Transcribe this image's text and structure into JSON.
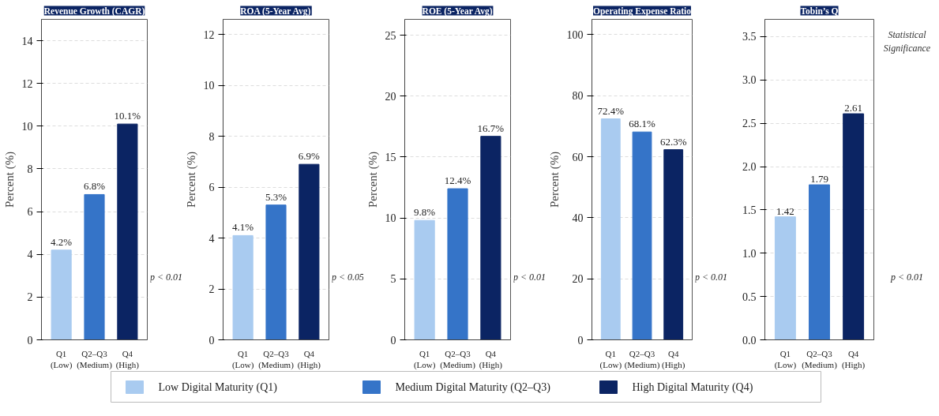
{
  "chart_data": [
    {
      "type": "bar",
      "title": "Revenue Growth (CAGR)",
      "ylabel": "Percent (%)",
      "categories": [
        "Q1\n(Low)",
        "Q2–Q3\n(Medium)",
        "Q4\n(High)"
      ],
      "series": [
        {
          "name": "Low Digital Maturity (Q1)",
          "color": "#a9cbf0",
          "values": [
            4.2,
            null,
            null
          ],
          "value_labels": [
            "4.2%",
            null,
            null
          ]
        },
        {
          "name": "Medium Digital Maturity (Q2–Q3)",
          "color": "#3574c8",
          "values": [
            null,
            6.8,
            null
          ],
          "value_labels": [
            null,
            "6.8%",
            null
          ]
        },
        {
          "name": "High Digital Maturity (Q4)",
          "color": "#0b2463",
          "values": [
            null,
            null,
            10.1
          ],
          "value_labels": [
            null,
            null,
            "10.1%"
          ]
        }
      ],
      "ylim": [
        0,
        15
      ],
      "yticks": [
        0,
        2,
        4,
        6,
        8,
        10,
        12,
        14
      ],
      "grid": "y",
      "legend": "bottom",
      "annotations": [
        "p < 0.01"
      ]
    },
    {
      "type": "bar",
      "title": "ROA (5-Year Avg)",
      "ylabel": "Percent (%)",
      "categories": [
        "Q1\n(Low)",
        "Q2–Q3\n(Medium)",
        "Q4\n(High)"
      ],
      "series": [
        {
          "color": "#a9cbf0",
          "values": [
            4.1,
            null,
            null
          ],
          "value_labels": [
            "4.1%",
            null,
            null
          ]
        },
        {
          "color": "#3574c8",
          "values": [
            null,
            5.3,
            null
          ],
          "value_labels": [
            null,
            "5.3%",
            null
          ]
        },
        {
          "color": "#0b2463",
          "values": [
            null,
            null,
            6.9
          ],
          "value_labels": [
            null,
            null,
            "6.9%"
          ]
        }
      ],
      "ylim": [
        0,
        12.6
      ],
      "yticks": [
        0,
        2,
        4,
        6,
        8,
        10,
        12
      ],
      "grid": "y",
      "annotations": [
        "p < 0.05"
      ]
    },
    {
      "type": "bar",
      "title": "ROE (5-Year Avg)",
      "ylabel": "Percent (%)",
      "categories": [
        "Q1\n(Low)",
        "Q2–Q3\n(Medium)",
        "Q4\n(High)"
      ],
      "series": [
        {
          "color": "#a9cbf0",
          "values": [
            9.8,
            null,
            null
          ],
          "value_labels": [
            "9.8%",
            null,
            null
          ]
        },
        {
          "color": "#3574c8",
          "values": [
            null,
            12.4,
            null
          ],
          "value_labels": [
            null,
            "12.4%",
            null
          ]
        },
        {
          "color": "#0b2463",
          "values": [
            null,
            null,
            16.7
          ],
          "value_labels": [
            null,
            null,
            "16.7%"
          ]
        }
      ],
      "ylim": [
        0,
        26.3
      ],
      "yticks": [
        0,
        5,
        10,
        15,
        20,
        25
      ],
      "grid": "y",
      "annotations": [
        "p < 0.01"
      ]
    },
    {
      "type": "bar",
      "title": "Operating Expense Ratio",
      "ylabel": "Percent (%)",
      "categories": [
        "Q1\n(Low)",
        "Q2–Q3\n(Medium)",
        "Q4\n(High)"
      ],
      "series": [
        {
          "color": "#a9cbf0",
          "values": [
            72.4,
            null,
            null
          ],
          "value_labels": [
            "72.4%",
            null,
            null
          ]
        },
        {
          "color": "#3574c8",
          "values": [
            null,
            68.1,
            null
          ],
          "value_labels": [
            null,
            "68.1%",
            null
          ]
        },
        {
          "color": "#0b2463",
          "values": [
            null,
            null,
            62.3
          ],
          "value_labels": [
            null,
            null,
            "62.3%"
          ]
        }
      ],
      "ylim": [
        0,
        105
      ],
      "yticks": [
        0,
        20,
        40,
        60,
        80,
        100
      ],
      "grid": "y",
      "annotations": [
        "p < 0.01"
      ]
    },
    {
      "type": "bar",
      "title": "Tobin’s Q",
      "categories": [
        "Q1\n(Low)",
        "Q2–Q3\n(Medium)",
        "Q4\n(High)"
      ],
      "series": [
        {
          "color": "#a9cbf0",
          "values": [
            1.42,
            null,
            null
          ],
          "value_labels": [
            "1.42",
            null,
            null
          ]
        },
        {
          "color": "#3574c8",
          "values": [
            null,
            1.79,
            null
          ],
          "value_labels": [
            null,
            "1.79",
            null
          ]
        },
        {
          "color": "#0b2463",
          "values": [
            null,
            null,
            2.61
          ],
          "value_labels": [
            null,
            null,
            "2.61"
          ]
        }
      ],
      "ylim": [
        0,
        3.7
      ],
      "yticks": [
        {
          "value": 0,
          "label": "0.0"
        },
        {
          "value": 0.5,
          "label": "0.5"
        },
        {
          "value": 1,
          "label": "1.0"
        },
        {
          "value": 1.5,
          "label": "1.5"
        },
        {
          "value": 2,
          "label": "2.0"
        },
        {
          "value": 2.5,
          "label": "2.5"
        },
        {
          "value": 3,
          "label": "3.0"
        },
        {
          "value": 3.5,
          "label": "3.5"
        }
      ],
      "grid": "y",
      "annotations": [
        "p < 0.01",
        "Statistical\nSignificance"
      ]
    }
  ]
}
